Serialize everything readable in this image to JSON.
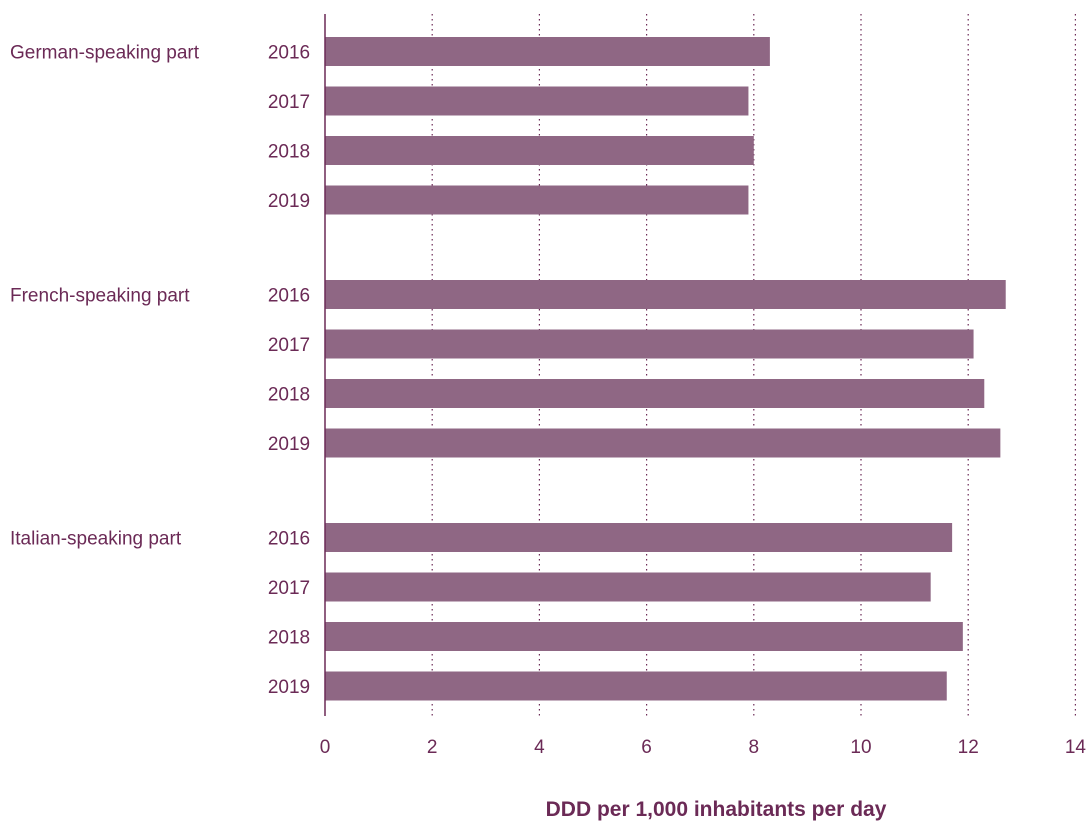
{
  "chart_data": {
    "type": "bar",
    "orientation": "horizontal",
    "xlabel": "DDD per 1,000 inhabitants per day",
    "xlim": [
      0,
      14
    ],
    "xticks": [
      0,
      2,
      4,
      6,
      8,
      10,
      12,
      14
    ],
    "grid": "vertical dotted",
    "bar_color": "#8f6784",
    "text_color": "#6b2a56",
    "groups": [
      {
        "name": "German-speaking part",
        "bars": [
          {
            "year": "2016",
            "value": 8.3
          },
          {
            "year": "2017",
            "value": 7.9
          },
          {
            "year": "2018",
            "value": 8.0
          },
          {
            "year": "2019",
            "value": 7.9
          }
        ]
      },
      {
        "name": "French-speaking part",
        "bars": [
          {
            "year": "2016",
            "value": 12.7
          },
          {
            "year": "2017",
            "value": 12.1
          },
          {
            "year": "2018",
            "value": 12.3
          },
          {
            "year": "2019",
            "value": 12.6
          }
        ]
      },
      {
        "name": "Italian-speaking part",
        "bars": [
          {
            "year": "2016",
            "value": 11.7
          },
          {
            "year": "2017",
            "value": 11.3
          },
          {
            "year": "2018",
            "value": 11.9
          },
          {
            "year": "2019",
            "value": 11.6
          }
        ]
      }
    ]
  }
}
